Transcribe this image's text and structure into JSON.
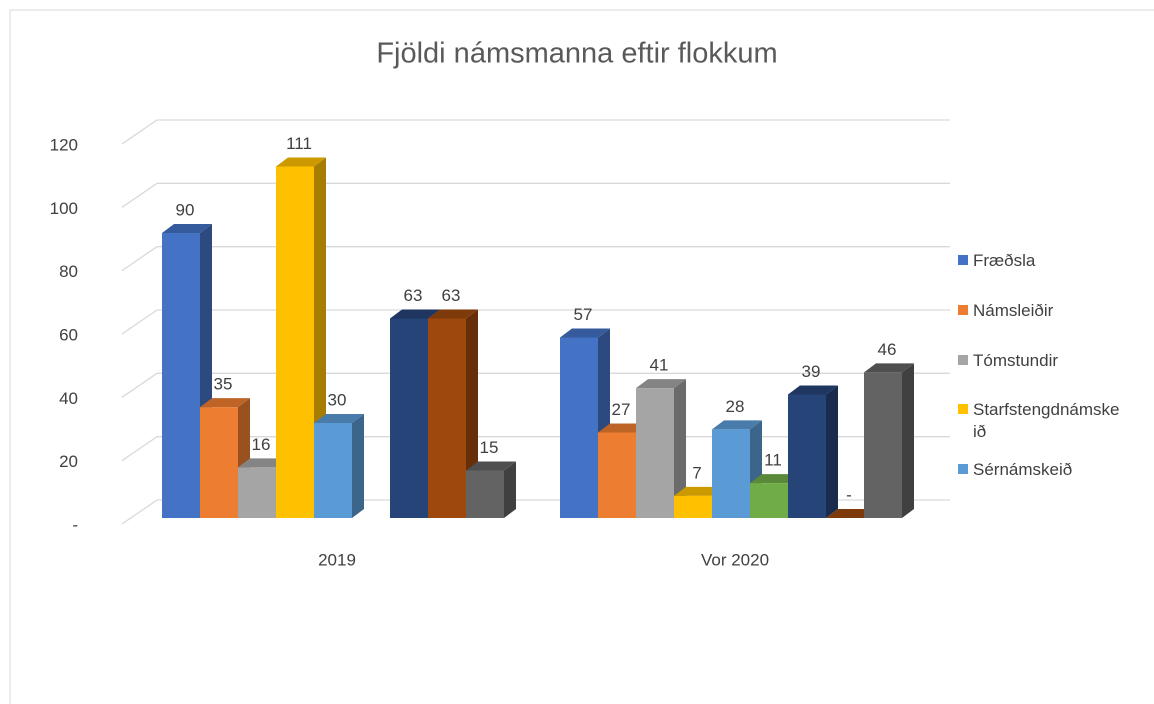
{
  "chart_data": {
    "type": "bar3d",
    "title": "Fjöldi námsmanna eftir flokkum",
    "categories": [
      "2019",
      "Vor 2020"
    ],
    "series": [
      {
        "name": "Fræðsla",
        "color": "#4472c4",
        "values": [
          90,
          57
        ]
      },
      {
        "name": "Námsleiðir",
        "color": "#ed7d31",
        "values": [
          35,
          27
        ]
      },
      {
        "name": "Tómstundir",
        "color": "#a5a5a5",
        "values": [
          16,
          41
        ]
      },
      {
        "name": "Starfstengdnámskeið",
        "color": "#ffc000",
        "values": [
          111,
          7
        ]
      },
      {
        "name": "Sérnámskeið",
        "color": "#5b9bd5",
        "values": [
          30,
          28
        ]
      },
      {
        "color": "#70ad47",
        "values": [
          null,
          11
        ]
      },
      {
        "color": "#264478",
        "values": [
          63,
          39
        ]
      },
      {
        "color": "#9e480e",
        "values": [
          63,
          0
        ],
        "value_labels": [
          "63",
          "-"
        ]
      },
      {
        "color": "#636363",
        "values": [
          15,
          46
        ]
      }
    ],
    "ylim": [
      0,
      120
    ],
    "yticks": [
      {
        "value": 0,
        "label": "-"
      },
      20,
      40,
      60,
      80,
      100,
      120
    ],
    "grid": true,
    "legend": "right"
  }
}
